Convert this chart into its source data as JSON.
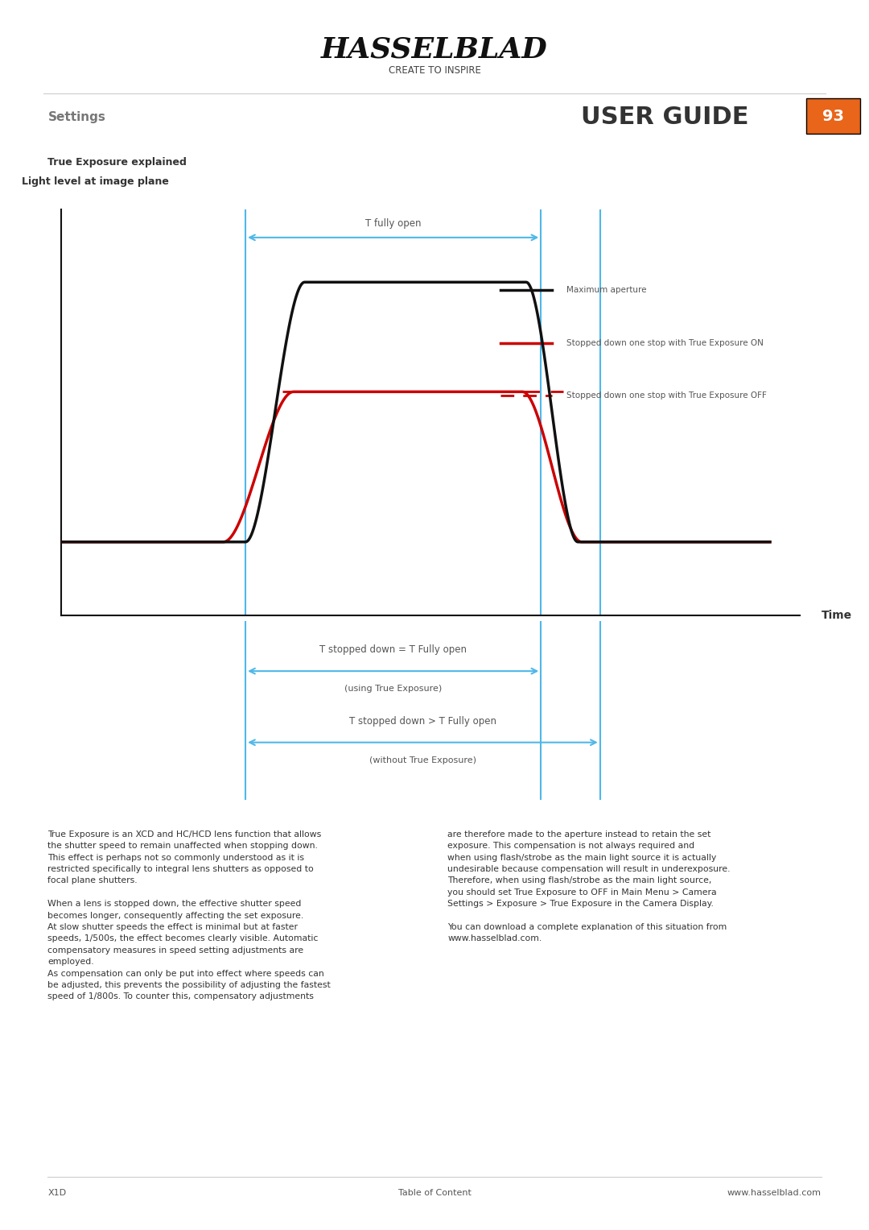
{
  "title_hasselblad": "HASSELBLAD",
  "subtitle_hasselblad": "CREATE TO INSPIRE",
  "section_label": "Settings",
  "page_title": "USER GUIDE",
  "page_number": "93",
  "section_subtitle": "True Exposure explained",
  "chart_ylabel": "Light level at image plane",
  "chart_xlabel": "Time",
  "legend_entries": [
    "Maximum aperture",
    "Stopped down one stop with True Exposure ON",
    "Stopped down one stop with True Exposure OFF"
  ],
  "annotation_t_fully_open": "T fully open",
  "annotation_t_stopped_equal": "T stopped down = T Fully open",
  "annotation_t_stopped_equal_sub": "(using True Exposure)",
  "annotation_t_stopped_greater": "T stopped down > T Fully open",
  "annotation_t_stopped_greater_sub": "(without True Exposure)",
  "text_body_left": "True Exposure is an XCD and HC/HCD lens function that allows\nthe shutter speed to remain unaffected when stopping down.\nThis effect is perhaps not so commonly understood as it is\nrestricted specifically to integral lens shutters as opposed to\nfocal plane shutters.\n\nWhen a lens is stopped down, the effective shutter speed\nbecomes longer, consequently affecting the set exposure.\nAt slow shutter speeds the effect is minimal but at faster\nspeeds, 1/500s, the effect becomes clearly visible. Automatic\ncompensatory measures in speed setting adjustments are\nemployed.\nAs compensation can only be put into effect where speeds can\nbe adjusted, this prevents the possibility of adjusting the fastest\nspeed of 1/800s. To counter this, compensatory adjustments",
  "text_body_right": "are therefore made to the aperture instead to retain the set\nexposure. This compensation is not always required and\nwhen using flash/strobe as the main light source it is actually\nundesirable because compensation will result in underexposure.\nTherefore, when using flash/strobe as the main light source,\nyou should set True Exposure to OFF in Main Menu > Camera\nSettings > Exposure > True Exposure in the Camera Display.\n\nYou can download a complete explanation of this situation from\nwww.hasselblad.com.",
  "footer_left": "X1D",
  "footer_center": "Table of Content",
  "footer_right": "www.hasselblad.com",
  "orange_color": "#E8651A",
  "blue_color": "#4EB8E8",
  "bg_color": "#ffffff",
  "separator_color": "#cccccc"
}
